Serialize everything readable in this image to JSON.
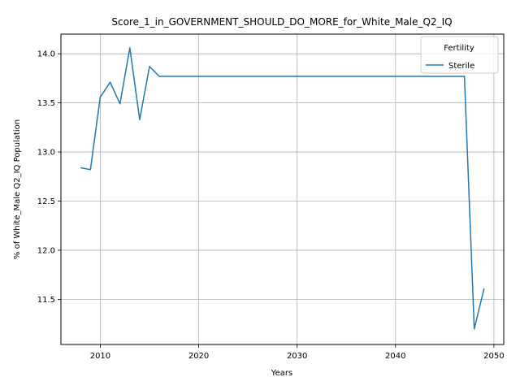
{
  "chart_data": {
    "type": "line",
    "title": "Score_1_in_GOVERNMENT_SHOULD_DO_MORE_for_White_Male_Q2_IQ",
    "xlabel": "Years",
    "ylabel": "% of White_Male Q2_IQ Population",
    "xlim": [
      2006,
      2051
    ],
    "ylim": [
      11.04,
      14.2
    ],
    "xticks": [
      2010,
      2020,
      2030,
      2040,
      2050
    ],
    "yticks": [
      11.5,
      12.0,
      12.5,
      13.0,
      13.5,
      14.0
    ],
    "xtick_labels": [
      "2010",
      "2020",
      "2030",
      "2040",
      "2050"
    ],
    "ytick_labels": [
      "11.5",
      "12.0",
      "12.5",
      "13.0",
      "13.5",
      "14.0"
    ],
    "grid": true,
    "legend": {
      "title": "Fertility",
      "placement": "top-right"
    },
    "series": [
      {
        "name": "Sterile",
        "color": "#1f77b4",
        "x": [
          2008,
          2009,
          2010,
          2011,
          2012,
          2013,
          2014,
          2015,
          2016,
          2017,
          2018,
          2019,
          2020,
          2021,
          2022,
          2023,
          2024,
          2025,
          2026,
          2027,
          2028,
          2029,
          2030,
          2031,
          2032,
          2033,
          2034,
          2035,
          2036,
          2037,
          2038,
          2039,
          2040,
          2041,
          2042,
          2043,
          2044,
          2045,
          2046,
          2047,
          2048,
          2049
        ],
        "y": [
          12.84,
          12.82,
          13.56,
          13.71,
          13.49,
          14.06,
          13.33,
          13.87,
          13.77,
          13.77,
          13.77,
          13.77,
          13.77,
          13.77,
          13.77,
          13.77,
          13.77,
          13.77,
          13.77,
          13.77,
          13.77,
          13.77,
          13.77,
          13.77,
          13.77,
          13.77,
          13.77,
          13.77,
          13.77,
          13.77,
          13.77,
          13.77,
          13.77,
          13.77,
          13.77,
          13.77,
          13.77,
          13.77,
          13.77,
          13.77,
          11.2,
          11.61
        ]
      }
    ]
  }
}
